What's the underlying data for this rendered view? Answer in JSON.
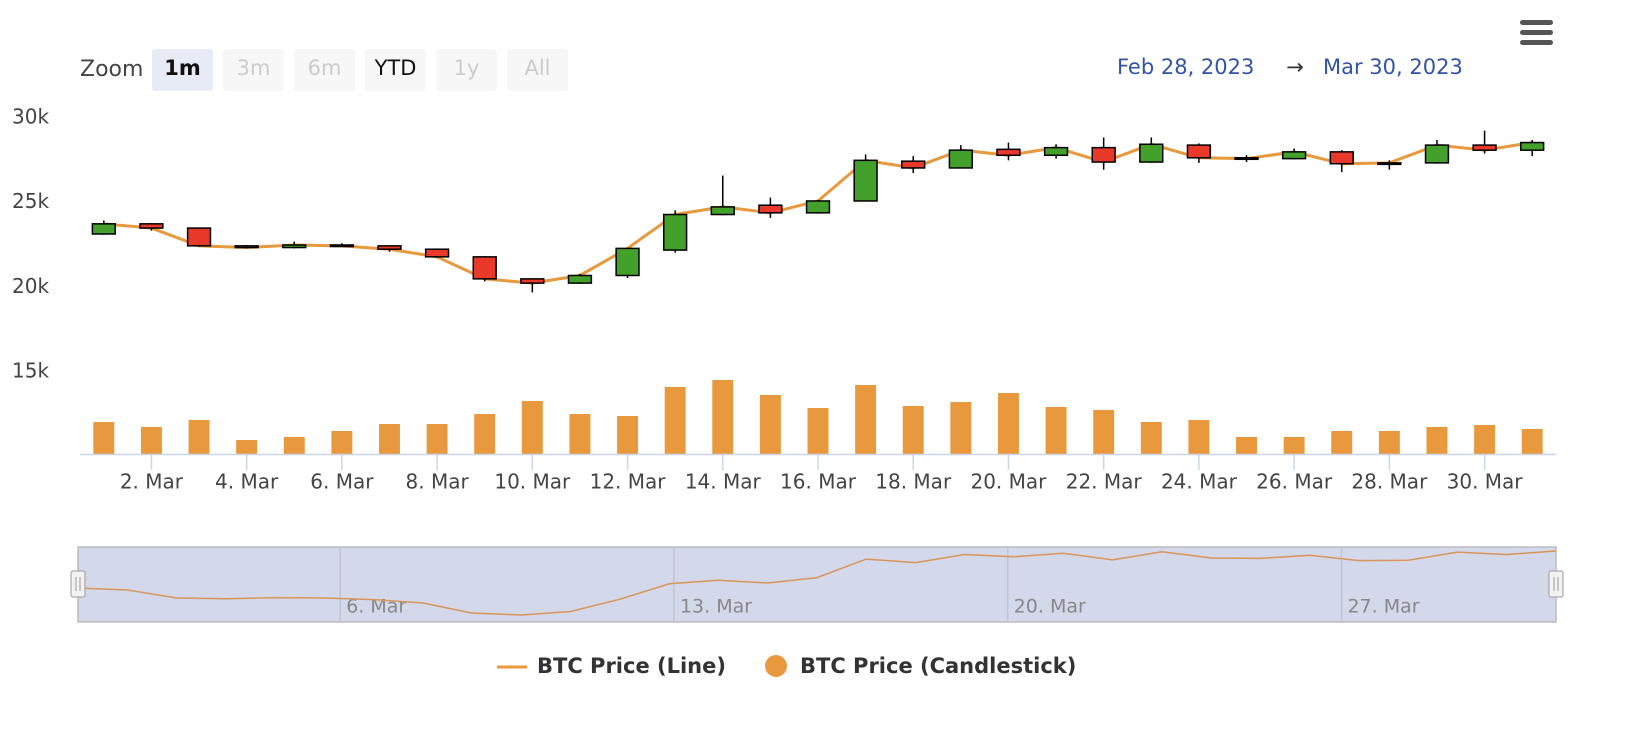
{
  "range_selector": {
    "label": "Zoom",
    "buttons": [
      {
        "text": "1m",
        "state": "selected"
      },
      {
        "text": "3m",
        "state": "disabled"
      },
      {
        "text": "6m",
        "state": "disabled"
      },
      {
        "text": "YTD",
        "state": "normal"
      },
      {
        "text": "1y",
        "state": "disabled"
      },
      {
        "text": "All",
        "state": "disabled"
      }
    ]
  },
  "date_range": {
    "from": "Feb 28, 2023",
    "arrow": "→",
    "to": "Mar 30, 2023"
  },
  "chart_data": {
    "type": "candlestick",
    "x": [
      1,
      2,
      3,
      4,
      5,
      6,
      7,
      8,
      9,
      10,
      11,
      12,
      13,
      14,
      15,
      16,
      17,
      18,
      19,
      20,
      21,
      22,
      23,
      24,
      25,
      26,
      27,
      28,
      29,
      30,
      31
    ],
    "open": [
      23150,
      23750,
      23500,
      22450,
      22350,
      22500,
      22450,
      22250,
      21800,
      20500,
      20250,
      20700,
      22200,
      24300,
      24850,
      24400,
      25100,
      27450,
      27050,
      28150,
      27800,
      28250,
      27400,
      28400,
      27650,
      27600,
      28000,
      27300,
      27350,
      28400,
      28100
    ],
    "high": [
      23950,
      23800,
      23500,
      22500,
      22700,
      22600,
      22450,
      22300,
      21850,
      20500,
      20800,
      22300,
      24550,
      26600,
      25300,
      25150,
      27850,
      27750,
      28400,
      28550,
      28450,
      28850,
      28850,
      28500,
      27800,
      28200,
      28100,
      27500,
      28700,
      29250,
      28700
    ],
    "low": [
      23100,
      23350,
      22400,
      22300,
      22300,
      22400,
      22100,
      21750,
      20350,
      19700,
      20200,
      20550,
      22050,
      24250,
      24100,
      24350,
      25100,
      26750,
      27050,
      27500,
      27600,
      26950,
      27350,
      27350,
      27400,
      27550,
      26800,
      26950,
      27300,
      27900,
      27750
    ],
    "close": [
      23750,
      23500,
      22450,
      22350,
      22500,
      22450,
      22250,
      21800,
      20500,
      20250,
      20700,
      22300,
      24300,
      24750,
      24400,
      25100,
      27500,
      27050,
      28100,
      27800,
      28250,
      27400,
      28450,
      27650,
      27600,
      28000,
      27300,
      27350,
      28400,
      28100,
      28550
    ],
    "volume": [
      32,
      27,
      34,
      14,
      17,
      23,
      30,
      30,
      40,
      53,
      40,
      38,
      67,
      74,
      59,
      46,
      69,
      48,
      52,
      61,
      47,
      44,
      32,
      34,
      17,
      17,
      23,
      23,
      27,
      29,
      25
    ],
    "up_color": "#43a02a",
    "down_color": "#e8392a",
    "series": [
      {
        "name": "BTC Price (Line)",
        "color": "#e8993d"
      },
      {
        "name": "BTC Price (Candlestick)",
        "color": "#e8993d",
        "axis": "y2"
      }
    ],
    "xlim": [
      0.5,
      31.5
    ],
    "xticks": [
      {
        "value": 2,
        "label": "2. Mar"
      },
      {
        "value": 4,
        "label": "4. Mar"
      },
      {
        "value": 6,
        "label": "6. Mar"
      },
      {
        "value": 8,
        "label": "8. Mar"
      },
      {
        "value": 10,
        "label": "10. Mar"
      },
      {
        "value": 12,
        "label": "12. Mar"
      },
      {
        "value": 14,
        "label": "14. Mar"
      },
      {
        "value": 16,
        "label": "16. Mar"
      },
      {
        "value": 18,
        "label": "18. Mar"
      },
      {
        "value": 20,
        "label": "20. Mar"
      },
      {
        "value": 22,
        "label": "22. Mar"
      },
      {
        "value": 24,
        "label": "24. Mar"
      },
      {
        "value": 26,
        "label": "26. Mar"
      },
      {
        "value": 28,
        "label": "28. Mar"
      },
      {
        "value": 30,
        "label": "30. Mar"
      }
    ],
    "ylim": [
      15000,
      30000
    ],
    "yticks": [
      {
        "value": 15000,
        "label": "15k"
      },
      {
        "value": 20000,
        "label": "20k"
      },
      {
        "value": 25000,
        "label": "25k"
      },
      {
        "value": 30000,
        "label": "30k"
      }
    ],
    "y2lim": [
      0,
      80
    ],
    "navigator_xticks": [
      {
        "value": 6,
        "label": "6. Mar"
      },
      {
        "value": 13,
        "label": "13. Mar"
      },
      {
        "value": 20,
        "label": "20. Mar"
      },
      {
        "value": 27,
        "label": "27. Mar"
      }
    ]
  }
}
